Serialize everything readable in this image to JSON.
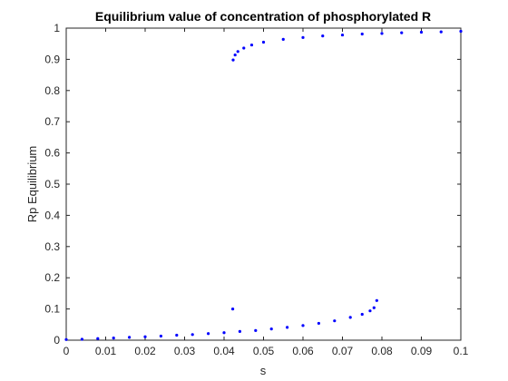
{
  "chart_data": {
    "type": "scatter",
    "title": "Equilibrium value of concentration of  phosphorylated R",
    "xlabel": "s",
    "ylabel": "Rp Equilibrium",
    "xlim": [
      0,
      0.1
    ],
    "ylim": [
      0,
      1
    ],
    "xticks": [
      "0",
      "0.01",
      "0.02",
      "0.03",
      "0.04",
      "0.05",
      "0.06",
      "0.07",
      "0.08",
      "0.09",
      "0.1"
    ],
    "yticks": [
      "0",
      "0.1",
      "0.2",
      "0.3",
      "0.4",
      "0.5",
      "0.6",
      "0.7",
      "0.8",
      "0.9",
      "1"
    ],
    "grid": false,
    "marker_color": "#0000ff",
    "series": [
      {
        "values": [
          {
            "x": 0.0,
            "y": 0.002
          },
          {
            "x": 0.004,
            "y": 0.003
          },
          {
            "x": 0.008,
            "y": 0.005
          },
          {
            "x": 0.012,
            "y": 0.007
          },
          {
            "x": 0.016,
            "y": 0.009
          },
          {
            "x": 0.02,
            "y": 0.011
          },
          {
            "x": 0.024,
            "y": 0.013
          },
          {
            "x": 0.028,
            "y": 0.016
          },
          {
            "x": 0.032,
            "y": 0.018
          },
          {
            "x": 0.036,
            "y": 0.021
          },
          {
            "x": 0.04,
            "y": 0.024
          },
          {
            "x": 0.044,
            "y": 0.028
          },
          {
            "x": 0.048,
            "y": 0.031
          },
          {
            "x": 0.052,
            "y": 0.036
          },
          {
            "x": 0.056,
            "y": 0.041
          },
          {
            "x": 0.06,
            "y": 0.047
          },
          {
            "x": 0.064,
            "y": 0.054
          },
          {
            "x": 0.068,
            "y": 0.062
          },
          {
            "x": 0.072,
            "y": 0.073
          },
          {
            "x": 0.075,
            "y": 0.083
          },
          {
            "x": 0.077,
            "y": 0.094
          },
          {
            "x": 0.078,
            "y": 0.104
          }
        ]
      },
      {
        "values": [
          {
            "x": 0.0423,
            "y": 0.898
          },
          {
            "x": 0.0428,
            "y": 0.914
          },
          {
            "x": 0.0435,
            "y": 0.925
          },
          {
            "x": 0.045,
            "y": 0.936
          },
          {
            "x": 0.047,
            "y": 0.946
          },
          {
            "x": 0.05,
            "y": 0.955
          },
          {
            "x": 0.055,
            "y": 0.964
          },
          {
            "x": 0.06,
            "y": 0.97
          },
          {
            "x": 0.065,
            "y": 0.975
          },
          {
            "x": 0.07,
            "y": 0.978
          },
          {
            "x": 0.075,
            "y": 0.981
          },
          {
            "x": 0.08,
            "y": 0.983
          },
          {
            "x": 0.085,
            "y": 0.985
          },
          {
            "x": 0.09,
            "y": 0.987
          },
          {
            "x": 0.095,
            "y": 0.988
          },
          {
            "x": 0.1,
            "y": 0.99
          }
        ]
      },
      {
        "values": [
          {
            "x": 0.0422,
            "y": 0.1
          },
          {
            "x": 0.0787,
            "y": 0.127
          }
        ]
      }
    ]
  }
}
